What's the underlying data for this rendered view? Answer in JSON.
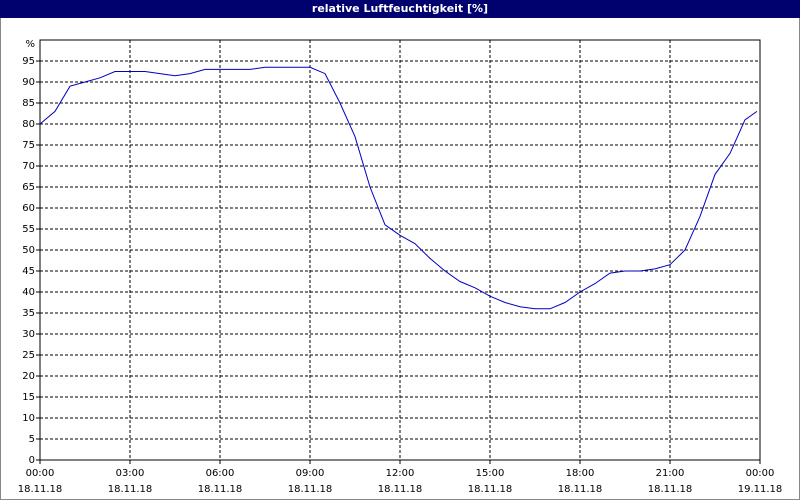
{
  "chart_data": {
    "type": "line",
    "title": "relative Luftfeuchtigkeit [%]",
    "y_unit": "%",
    "x": [
      0,
      0.5,
      1,
      1.5,
      2,
      2.5,
      3,
      3.5,
      4,
      4.5,
      5,
      5.5,
      6,
      6.5,
      7,
      7.5,
      8,
      8.5,
      9,
      9.5,
      10,
      10.5,
      11,
      11.5,
      12,
      12.5,
      13,
      13.5,
      14,
      14.5,
      15,
      15.5,
      16,
      16.5,
      17,
      17.5,
      18,
      18.5,
      19,
      19.5,
      20,
      20.5,
      21,
      21.5,
      22,
      22.5,
      23,
      23.5,
      23.9
    ],
    "series": [
      {
        "name": "relative Luftfeuchtigkeit",
        "color": "#0000c0",
        "values": [
          80,
          83,
          89,
          90,
          91,
          92.5,
          92.5,
          92.5,
          92,
          91.5,
          92,
          93,
          93,
          93,
          93,
          93.5,
          93.5,
          93.5,
          93.5,
          92,
          85,
          77,
          65,
          56,
          53.5,
          51.5,
          48,
          45,
          42.5,
          41,
          39,
          37.5,
          36.5,
          36,
          36,
          37.5,
          40,
          42,
          44.5,
          45,
          45,
          45.5,
          46.5,
          50,
          58,
          68,
          73,
          81,
          83
        ]
      }
    ],
    "xlim": [
      0,
      24
    ],
    "xticks": [
      {
        "value": 0,
        "label": "00:00",
        "date": "18.11.18"
      },
      {
        "value": 3,
        "label": "03:00",
        "date": "18.11.18"
      },
      {
        "value": 6,
        "label": "06:00",
        "date": "18.11.18"
      },
      {
        "value": 9,
        "label": "09:00",
        "date": "18.11.18"
      },
      {
        "value": 12,
        "label": "12:00",
        "date": "18.11.18"
      },
      {
        "value": 15,
        "label": "15:00",
        "date": "18.11.18"
      },
      {
        "value": 18,
        "label": "18:00",
        "date": "18.11.18"
      },
      {
        "value": 21,
        "label": "21:00",
        "date": "18.11.18"
      },
      {
        "value": 24,
        "label": "00:00",
        "date": "19.11.18"
      }
    ],
    "ylim": [
      0,
      100
    ],
    "yticks": [
      0,
      5,
      10,
      15,
      20,
      25,
      30,
      35,
      40,
      45,
      50,
      55,
      60,
      65,
      70,
      75,
      80,
      85,
      90,
      95
    ],
    "grid": true
  }
}
